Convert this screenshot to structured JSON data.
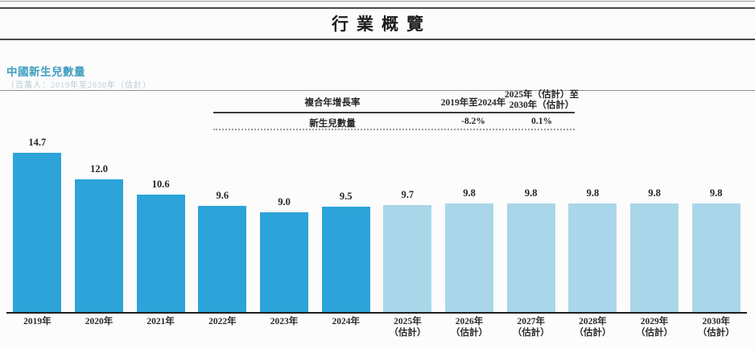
{
  "page": {
    "title": "行業概覽"
  },
  "section": {
    "heading": "中國新生兒數量",
    "subtitle": "（百萬人：2019年至2030年（估計）"
  },
  "table": {
    "col1_header": "複合年增長率",
    "col2_header": "2019年至2024年",
    "col3_header_line1": "2025年（估計）至",
    "col3_header_line2": "2030年（估計）",
    "row_label": "新生兒數量",
    "col2_value": "-8.2%",
    "col3_value": "0.1%"
  },
  "chart_data": {
    "type": "bar",
    "title": "中國新生兒數量",
    "unit": "百萬人",
    "categories": [
      {
        "label": "2019年",
        "sublabel": ""
      },
      {
        "label": "2020年",
        "sublabel": ""
      },
      {
        "label": "2021年",
        "sublabel": ""
      },
      {
        "label": "2022年",
        "sublabel": ""
      },
      {
        "label": "2023年",
        "sublabel": ""
      },
      {
        "label": "2024年",
        "sublabel": ""
      },
      {
        "label": "2025年",
        "sublabel": "（估計）"
      },
      {
        "label": "2026年",
        "sublabel": "（估計）"
      },
      {
        "label": "2027年",
        "sublabel": "（估計）"
      },
      {
        "label": "2028年",
        "sublabel": "（估計）"
      },
      {
        "label": "2029年",
        "sublabel": "（估計）"
      },
      {
        "label": "2030年",
        "sublabel": "（估計）"
      }
    ],
    "values": [
      14.7,
      12.0,
      10.6,
      9.6,
      9.0,
      9.5,
      9.7,
      9.8,
      9.8,
      9.8,
      9.8,
      9.8
    ],
    "value_labels": [
      "14.7",
      "12.0",
      "10.6",
      "9.6",
      "9.0",
      "9.5",
      "9.7",
      "9.8",
      "9.8",
      "9.8",
      "9.8",
      "9.8"
    ],
    "ylim": [
      0,
      14.7
    ],
    "actual_color": "#2ca4d9",
    "estimate_color": "#aad6e9",
    "estimate_start_index": 6,
    "grid": false,
    "legend": "none"
  }
}
